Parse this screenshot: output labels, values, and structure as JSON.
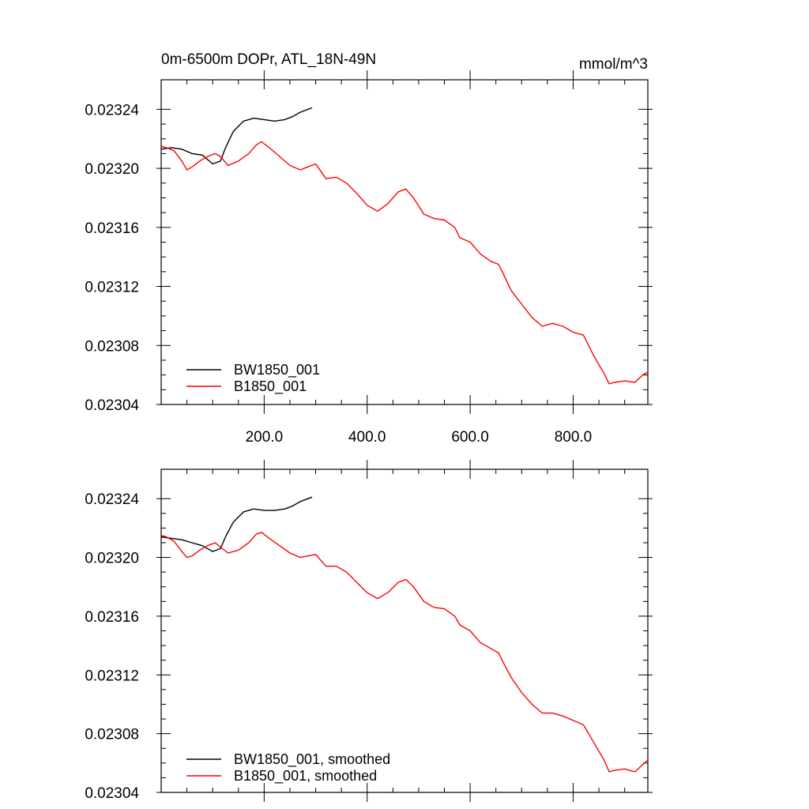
{
  "chart_data": [
    {
      "type": "line",
      "title_left": "0m-6500m DOPr, ATL_18N-49N",
      "title_right": "mmol/m^3",
      "xlabel": "",
      "ylabel": "",
      "xlim": [
        0,
        945
      ],
      "ylim": [
        0.02304,
        0.02326
      ],
      "x_ticks": [
        200,
        400,
        600,
        800
      ],
      "x_tick_labels": [
        "200.0",
        "400.0",
        "600.0",
        "800.0"
      ],
      "y_ticks": [
        0.02304,
        0.02308,
        0.02312,
        0.02316,
        0.0232,
        0.02324
      ],
      "y_tick_labels": [
        "0.02304",
        "0.02308",
        "0.02312",
        "0.02316",
        "0.02320",
        "0.02324"
      ],
      "legend_position": "bottom-left",
      "series": [
        {
          "name": "BW1850_001",
          "color": "#000000",
          "x": [
            0,
            20,
            40,
            60,
            80,
            100,
            115,
            125,
            140,
            160,
            180,
            200,
            220,
            240,
            255,
            270,
            285,
            293
          ],
          "y": [
            0.023213,
            0.023214,
            0.023213,
            0.02321,
            0.023209,
            0.023203,
            0.023205,
            0.023214,
            0.023225,
            0.023232,
            0.023234,
            0.023233,
            0.023232,
            0.023233,
            0.023235,
            0.023238,
            0.02324,
            0.023241
          ]
        },
        {
          "name": "B1850_001",
          "color": "#ff0000",
          "x": [
            0,
            10,
            25,
            40,
            50,
            60,
            75,
            90,
            105,
            115,
            130,
            150,
            170,
            185,
            195,
            210,
            230,
            250,
            270,
            285,
            300,
            310,
            320,
            340,
            360,
            380,
            400,
            420,
            440,
            460,
            475,
            490,
            510,
            530,
            550,
            570,
            580,
            600,
            620,
            640,
            655,
            665,
            680,
            700,
            720,
            740,
            760,
            780,
            800,
            820,
            840,
            860,
            870,
            880,
            900,
            920,
            935,
            945
          ],
          "y": [
            0.023215,
            0.023214,
            0.023212,
            0.023205,
            0.023199,
            0.023201,
            0.023205,
            0.023208,
            0.02321,
            0.023208,
            0.023202,
            0.023205,
            0.02321,
            0.023216,
            0.023218,
            0.023214,
            0.023208,
            0.023202,
            0.023199,
            0.023201,
            0.023203,
            0.023198,
            0.023193,
            0.023194,
            0.02319,
            0.023183,
            0.023175,
            0.023171,
            0.023176,
            0.023184,
            0.023186,
            0.02318,
            0.023169,
            0.023166,
            0.023165,
            0.02316,
            0.023153,
            0.02315,
            0.023142,
            0.023137,
            0.023135,
            0.023128,
            0.023117,
            0.023108,
            0.023099,
            0.023093,
            0.023095,
            0.023093,
            0.023089,
            0.023087,
            0.023073,
            0.023061,
            0.023054,
            0.023055,
            0.023056,
            0.023055,
            0.02306,
            0.023062
          ]
        }
      ]
    },
    {
      "type": "line",
      "title_left": "",
      "title_right": "",
      "xlabel": "",
      "ylabel": "",
      "xlim": [
        0,
        945
      ],
      "ylim": [
        0.02304,
        0.02326
      ],
      "x_ticks": [
        200,
        400,
        600,
        800
      ],
      "x_tick_labels": [],
      "y_ticks": [
        0.02304,
        0.02308,
        0.02312,
        0.02316,
        0.0232,
        0.02324
      ],
      "y_tick_labels": [
        "0.02304",
        "0.02308",
        "0.02312",
        "0.02316",
        "0.02320",
        "0.02324"
      ],
      "legend_position": "bottom-left",
      "series": [
        {
          "name": "BW1850_001, smoothed",
          "color": "#000000",
          "x": [
            0,
            20,
            40,
            60,
            80,
            100,
            115,
            125,
            140,
            160,
            180,
            200,
            220,
            240,
            255,
            270,
            285,
            293
          ],
          "y": [
            0.023214,
            0.023213,
            0.023212,
            0.02321,
            0.023208,
            0.023204,
            0.023206,
            0.023214,
            0.023224,
            0.023231,
            0.023233,
            0.023232,
            0.023232,
            0.023233,
            0.023235,
            0.023238,
            0.02324,
            0.023241
          ]
        },
        {
          "name": "B1850_001, smoothed",
          "color": "#ff0000",
          "x": [
            0,
            10,
            25,
            40,
            50,
            60,
            75,
            90,
            105,
            115,
            130,
            150,
            170,
            185,
            195,
            210,
            230,
            250,
            270,
            285,
            300,
            310,
            320,
            340,
            360,
            380,
            400,
            420,
            440,
            460,
            475,
            490,
            510,
            530,
            550,
            570,
            580,
            600,
            620,
            640,
            655,
            665,
            680,
            700,
            720,
            740,
            760,
            780,
            800,
            820,
            840,
            860,
            870,
            880,
            900,
            920,
            935,
            945
          ],
          "y": [
            0.023215,
            0.023214,
            0.023211,
            0.023204,
            0.0232,
            0.023201,
            0.023205,
            0.023208,
            0.02321,
            0.023207,
            0.023203,
            0.023205,
            0.02321,
            0.023216,
            0.023217,
            0.023213,
            0.023208,
            0.023203,
            0.0232,
            0.023201,
            0.023202,
            0.023198,
            0.023194,
            0.023194,
            0.02319,
            0.023183,
            0.023176,
            0.023172,
            0.023176,
            0.023183,
            0.023185,
            0.02318,
            0.02317,
            0.023166,
            0.023165,
            0.02316,
            0.023154,
            0.02315,
            0.023142,
            0.023138,
            0.023135,
            0.023128,
            0.023118,
            0.023108,
            0.0231,
            0.023094,
            0.023094,
            0.023092,
            0.023089,
            0.023086,
            0.023074,
            0.023062,
            0.023054,
            0.023055,
            0.023056,
            0.023054,
            0.023059,
            0.023062
          ]
        }
      ]
    }
  ]
}
